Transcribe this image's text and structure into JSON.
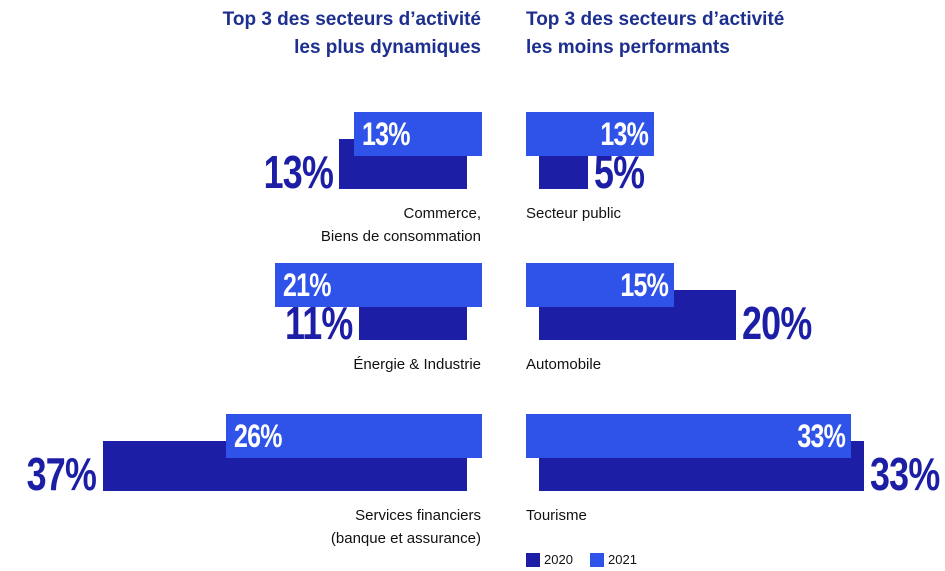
{
  "chart_data": [
    {
      "type": "bar",
      "title": "Top 3 des secteurs d’activité\nles plus dynamiques",
      "categories": [
        "Commerce,\nBiens de consommation",
        "Énergie & Industrie",
        "Services financiers\n(banque et assurance)"
      ],
      "series": [
        {
          "color": "#1c1fa6",
          "values": [
            13,
            11,
            37
          ],
          "value_labels": [
            "13%",
            "11%",
            "37%"
          ]
        },
        {
          "color": "#2f52e8",
          "values": [
            13,
            21,
            26
          ],
          "value_labels": [
            "13%",
            "21%",
            "26%"
          ]
        }
      ]
    },
    {
      "type": "bar",
      "title": "Top 3 des secteurs d’activité\nles moins performants",
      "categories": [
        "Secteur public",
        "Automobile",
        "Tourisme"
      ],
      "series": [
        {
          "name": "2020",
          "color": "#1c1fa6",
          "values": [
            5,
            20,
            33
          ],
          "value_labels": [
            "5%",
            "20%",
            "33%"
          ]
        },
        {
          "name": "2021",
          "color": "#2f52e8",
          "values": [
            13,
            15,
            33
          ],
          "value_labels": [
            "13%",
            "15%",
            "33%"
          ]
        }
      ]
    }
  ]
}
